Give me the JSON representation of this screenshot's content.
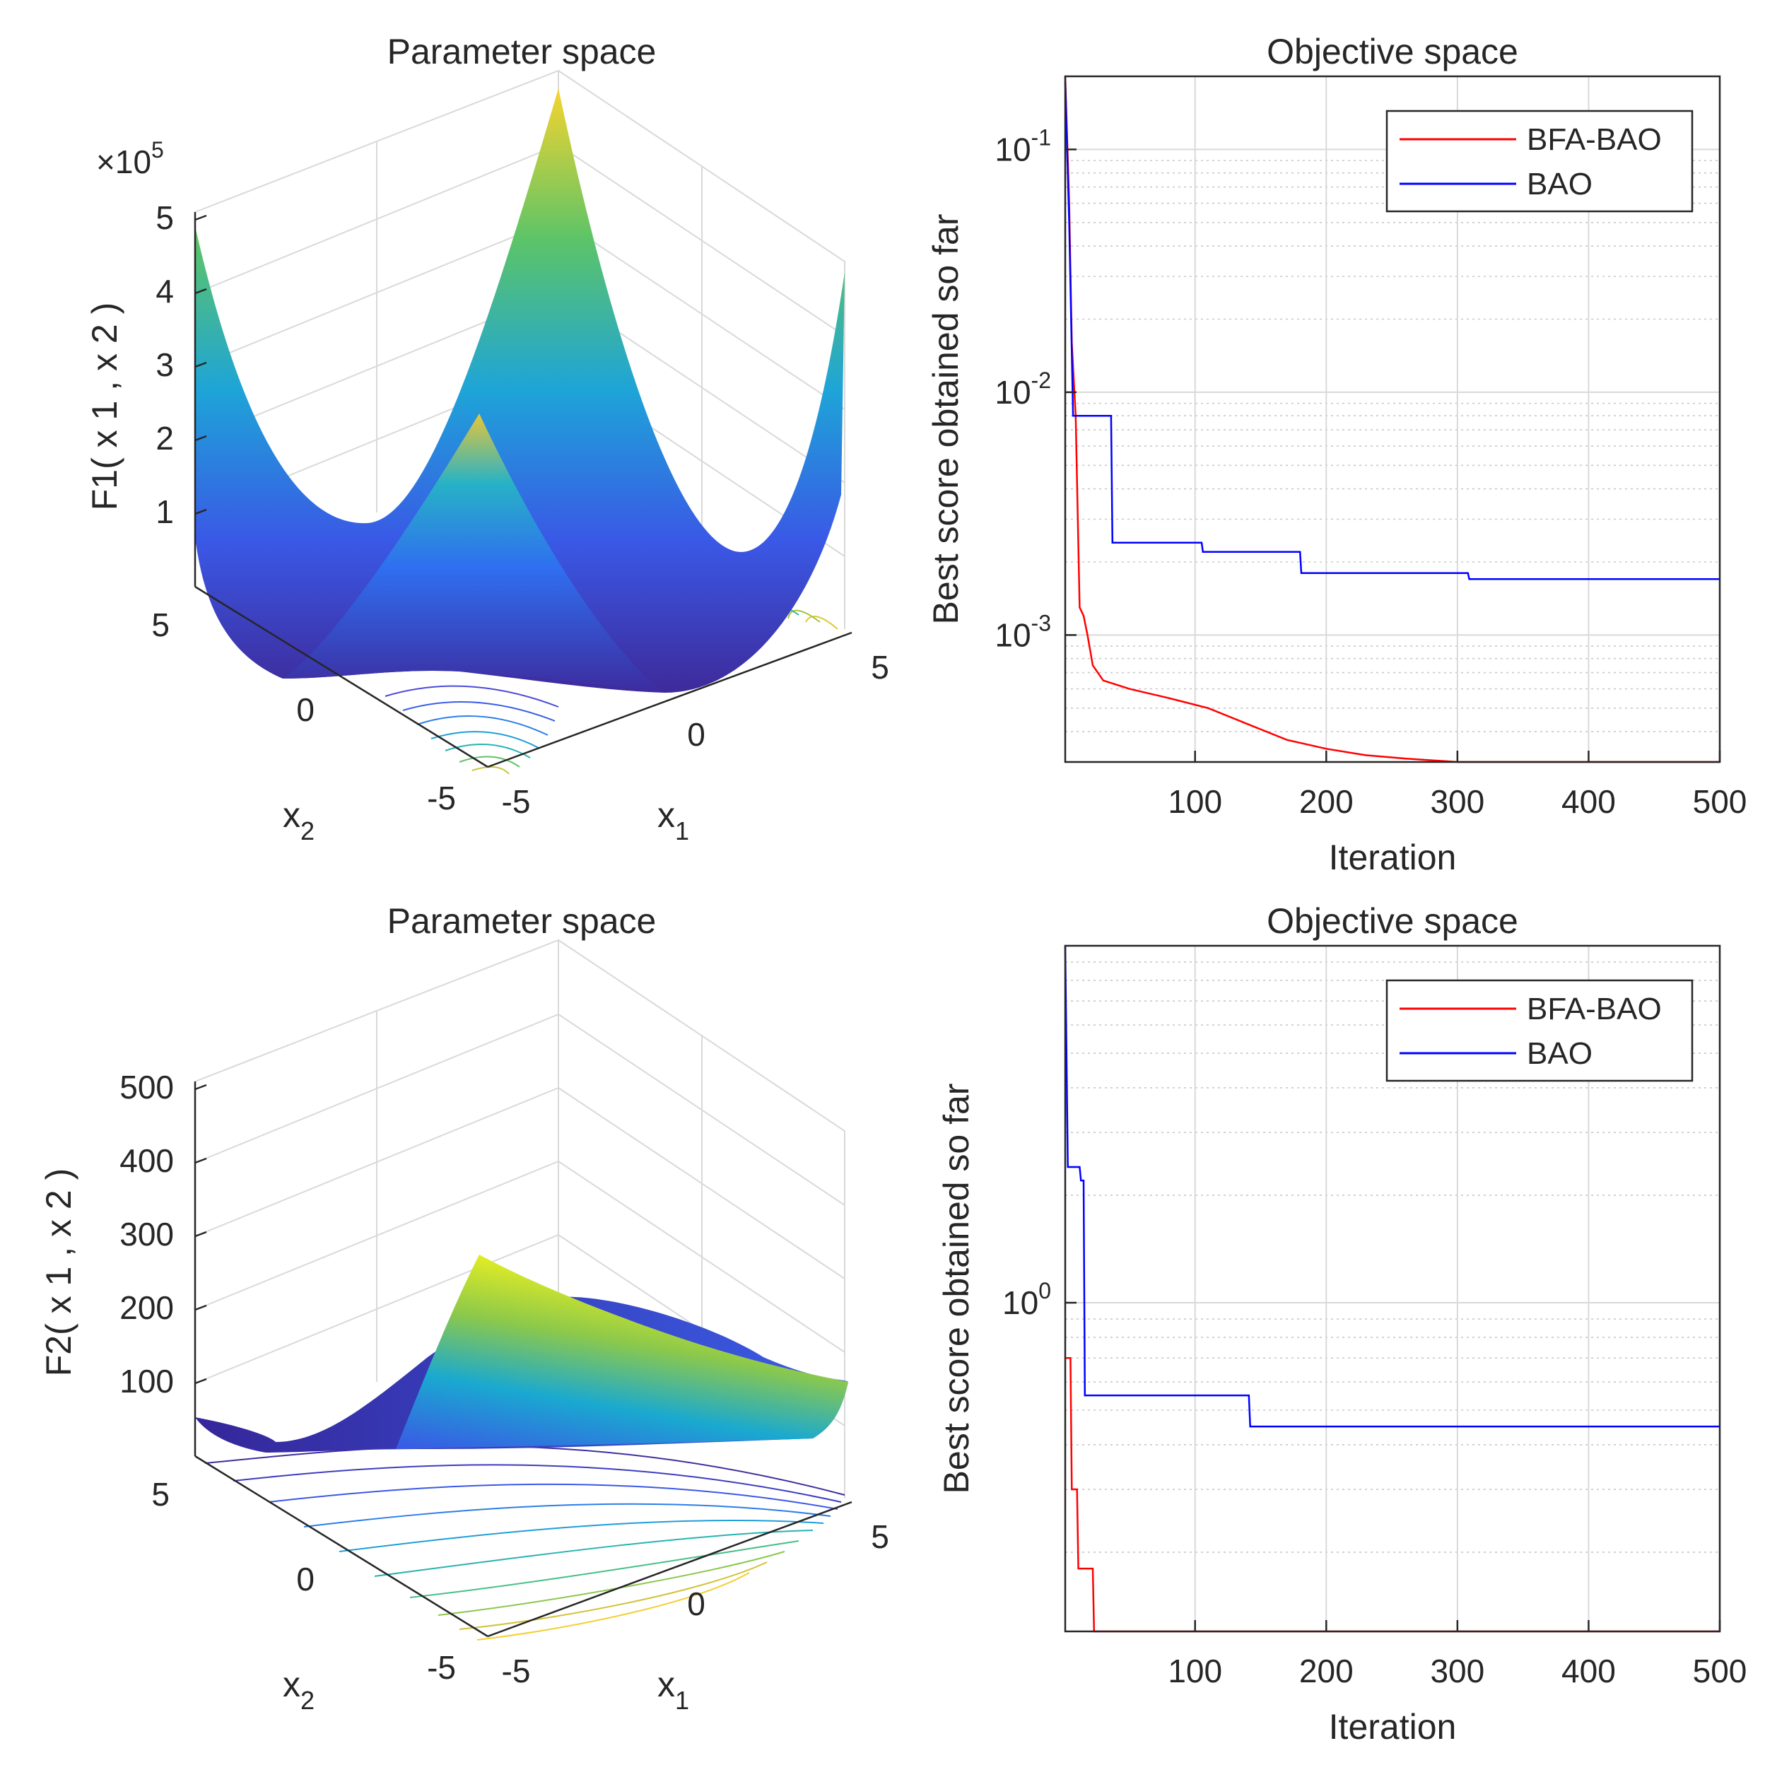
{
  "chart_data": [
    {
      "type": "surface",
      "title": "Parameter space",
      "xlabel": "x",
      "xlabel_sub": "1",
      "ylabel": "x",
      "ylabel_sub": "2",
      "zlabel": "F1( x 1 , x 2 )",
      "x_ticks": [
        "-5",
        "0",
        "5"
      ],
      "y_ticks": [
        "-5",
        "0",
        "5"
      ],
      "z_ticks": [
        "1",
        "2",
        "3",
        "4",
        "5"
      ],
      "z_multiplier": "×10",
      "z_multiplier_exp": "5",
      "xlim": [
        -5,
        5
      ],
      "ylim": [
        -5,
        5
      ],
      "zlim": [
        0,
        5
      ],
      "colormap": "parula",
      "contour_projection": true
    },
    {
      "type": "line",
      "title": "Objective space",
      "xlabel": "Iteration",
      "ylabel": "Best score obtained so far",
      "yscale": "log",
      "xlim": [
        1,
        500
      ],
      "ylim": [
        0.0003,
        0.2
      ],
      "x_ticks": [
        100,
        200,
        300,
        400,
        500
      ],
      "y_ticks": [
        {
          "base": "10",
          "exp": "-1",
          "value": 0.1
        },
        {
          "base": "10",
          "exp": "-2",
          "value": 0.01
        },
        {
          "base": "10",
          "exp": "-3",
          "value": 0.001
        }
      ],
      "grid": true,
      "legend_position": "top-right",
      "series": [
        {
          "name": "BFA-BAO",
          "color": "#ff0000",
          "points": [
            [
              1,
              0.2
            ],
            [
              4,
              0.06
            ],
            [
              6,
              0.016
            ],
            [
              9,
              0.008
            ],
            [
              12,
              0.0013
            ],
            [
              15,
              0.0012
            ],
            [
              18,
              0.001
            ],
            [
              22,
              0.00075
            ],
            [
              30,
              0.00065
            ],
            [
              50,
              0.0006
            ],
            [
              80,
              0.00055
            ],
            [
              110,
              0.0005
            ],
            [
              140,
              0.00043
            ],
            [
              170,
              0.00037
            ],
            [
              200,
              0.00034
            ],
            [
              230,
              0.00032
            ],
            [
              260,
              0.00031
            ],
            [
              300,
              0.0003
            ],
            [
              500,
              0.0003
            ]
          ]
        },
        {
          "name": "BAO",
          "color": "#0000ff",
          "points": [
            [
              1,
              0.19
            ],
            [
              4,
              0.05
            ],
            [
              7,
              0.008
            ],
            [
              36,
              0.008
            ],
            [
              37,
              0.0024
            ],
            [
              105,
              0.0024
            ],
            [
              106,
              0.0022
            ],
            [
              180,
              0.0022
            ],
            [
              181,
              0.0018
            ],
            [
              308,
              0.0018
            ],
            [
              309,
              0.0017
            ],
            [
              500,
              0.0017
            ]
          ]
        }
      ]
    },
    {
      "type": "surface",
      "title": "Parameter space",
      "xlabel": "x",
      "xlabel_sub": "1",
      "ylabel": "x",
      "ylabel_sub": "2",
      "zlabel": "F2( x 1 , x 2 )",
      "x_ticks": [
        "-5",
        "0",
        "5"
      ],
      "y_ticks": [
        "-5",
        "0",
        "5"
      ],
      "z_ticks": [
        "100",
        "200",
        "300",
        "400",
        "500"
      ],
      "xlim": [
        -5,
        5
      ],
      "ylim": [
        -5,
        5
      ],
      "zlim": [
        0,
        500
      ],
      "colormap": "parula",
      "contour_projection": true
    },
    {
      "type": "line",
      "title": "Objective space",
      "xlabel": "Iteration",
      "ylabel": "Best score obtained so far",
      "yscale": "log",
      "xlim": [
        1,
        500
      ],
      "ylim": [
        0.12,
        10
      ],
      "x_ticks": [
        100,
        200,
        300,
        400,
        500
      ],
      "y_ticks": [
        {
          "base": "10",
          "exp": "0",
          "value": 1
        }
      ],
      "grid": true,
      "legend_position": "top-right",
      "series": [
        {
          "name": "BFA-BAO",
          "color": "#ff0000",
          "points": [
            [
              1,
              0.7
            ],
            [
              5,
              0.7
            ],
            [
              6,
              0.3
            ],
            [
              10,
              0.3
            ],
            [
              11,
              0.18
            ],
            [
              22,
              0.18
            ],
            [
              23,
              0.12
            ],
            [
              500,
              0.12
            ]
          ]
        },
        {
          "name": "BAO",
          "color": "#0000ff",
          "points": [
            [
              1,
              10
            ],
            [
              3,
              2.4
            ],
            [
              12,
              2.4
            ],
            [
              13,
              2.2
            ],
            [
              15,
              2.2
            ],
            [
              16,
              0.55
            ],
            [
              141,
              0.55
            ],
            [
              142,
              0.45
            ],
            [
              500,
              0.45
            ]
          ]
        }
      ]
    }
  ]
}
